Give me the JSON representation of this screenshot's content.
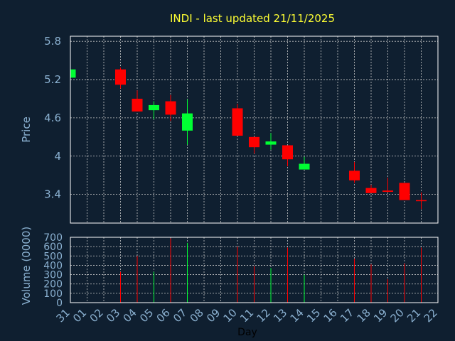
{
  "chart_data": {
    "type": "candlestick",
    "title": "INDI - last updated 21/11/2025",
    "xlabel": "Day",
    "ylabel": "Price",
    "volume_label": "Volume (0000)",
    "x_ticks": [
      "31",
      "01",
      "02",
      "03",
      "04",
      "05",
      "06",
      "07",
      "08",
      "09",
      "10",
      "11",
      "12",
      "13",
      "14",
      "15",
      "16",
      "17",
      "18",
      "19",
      "20",
      "21",
      "22"
    ],
    "price_ticks": [
      3.4,
      4,
      4.6,
      5.2,
      5.8
    ],
    "price_tick_labels": [
      "3.4",
      "4",
      "4.6",
      "5.2",
      "5.8"
    ],
    "ylim": [
      2.95,
      5.88
    ],
    "volume_ticks": [
      0,
      100,
      200,
      300,
      400,
      500,
      600,
      700
    ],
    "volume_ylim": [
      0,
      700
    ],
    "grid": true,
    "colors": {
      "up": "#00ff33",
      "down": "#ff0000",
      "title": "#ffff33",
      "axis_label": "#8ab0d0",
      "grid": "#c8c8c8",
      "background": "#0f1f30",
      "frame": "#ffffff"
    },
    "candles": [
      {
        "x": 0,
        "open": 5.23,
        "close": 5.36,
        "high": 5.36,
        "low": 5.23,
        "volume": 0
      },
      {
        "x": 3,
        "open": 5.36,
        "close": 5.12,
        "high": 5.39,
        "low": 5.06,
        "volume": 330
      },
      {
        "x": 4,
        "open": 4.9,
        "close": 4.7,
        "high": 5.03,
        "low": 4.7,
        "volume": 500
      },
      {
        "x": 5,
        "open": 4.72,
        "close": 4.8,
        "high": 4.86,
        "low": 4.58,
        "volume": 330
      },
      {
        "x": 6,
        "open": 4.86,
        "close": 4.65,
        "high": 4.96,
        "low": 4.55,
        "volume": 690
      },
      {
        "x": 7,
        "open": 4.4,
        "close": 4.67,
        "high": 4.89,
        "low": 4.18,
        "volume": 640
      },
      {
        "x": 10,
        "open": 4.75,
        "close": 4.32,
        "high": 4.82,
        "low": 4.32,
        "volume": 600
      },
      {
        "x": 11,
        "open": 4.3,
        "close": 4.14,
        "high": 4.3,
        "low": 4.04,
        "volume": 390
      },
      {
        "x": 12,
        "open": 4.18,
        "close": 4.23,
        "high": 4.36,
        "low": 4.1,
        "volume": 370
      },
      {
        "x": 13,
        "open": 4.17,
        "close": 3.95,
        "high": 4.17,
        "low": 3.84,
        "volume": 590
      },
      {
        "x": 14,
        "open": 3.79,
        "close": 3.88,
        "high": 3.99,
        "low": 3.79,
        "volume": 300
      },
      {
        "x": 17,
        "open": 3.77,
        "close": 3.62,
        "high": 3.91,
        "low": 3.58,
        "volume": 470
      },
      {
        "x": 18,
        "open": 3.5,
        "close": 3.42,
        "high": 3.55,
        "low": 3.42,
        "volume": 410
      },
      {
        "x": 19,
        "open": 3.46,
        "close": 3.44,
        "high": 3.66,
        "low": 3.43,
        "volume": 250
      },
      {
        "x": 20,
        "open": 3.58,
        "close": 3.31,
        "high": 3.58,
        "low": 3.31,
        "volume": 420
      },
      {
        "x": 21,
        "open": 3.31,
        "close": 3.3,
        "high": 3.43,
        "low": 3.17,
        "volume": 590
      }
    ]
  }
}
